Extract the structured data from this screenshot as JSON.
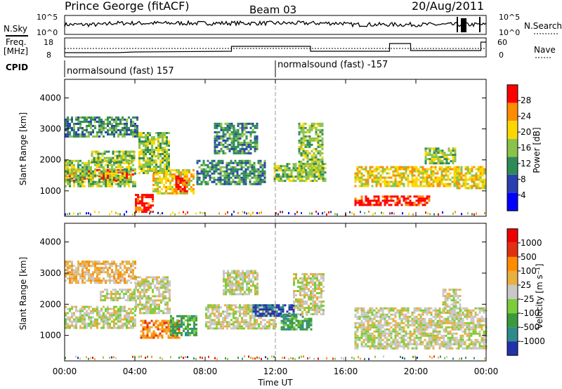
{
  "header": {
    "station": "Prince George (fitACF)",
    "beam": "Beam 03",
    "date": "20/Aug/2011"
  },
  "status_panels": {
    "nsky_label": "N.Sky",
    "nsearch_label": "N.Search",
    "nsky_ticks": [
      "10^5",
      "10^0"
    ],
    "nsearch_ticks": [
      "10^5",
      "10^0"
    ],
    "freq_label_1": "Freq.",
    "freq_label_2": "[MHz]",
    "freq_ticks": [
      "18",
      "8"
    ],
    "nave_label": "Nave",
    "nave_ticks": [
      "60",
      "0"
    ],
    "cpid_label": "CPID",
    "cpid_segments": [
      {
        "label": "normalsound (fast) 157",
        "start_h": 0,
        "end_h": 12
      },
      {
        "label": "normalsound (fast) -157",
        "start_h": 12,
        "end_h": 24
      }
    ]
  },
  "x_axis": {
    "title": "Time UT",
    "ticks": [
      "00:00",
      "04:00",
      "08:00",
      "12:00",
      "16:00",
      "20:00",
      "00:00"
    ],
    "range_hours": [
      0,
      24
    ]
  },
  "chart_data": [
    {
      "type": "heatmap",
      "panel": "power",
      "ylabel": "Slant Range [km]",
      "yticks": [
        1000,
        2000,
        3000,
        4000
      ],
      "ylim": [
        180,
        4600
      ],
      "colorbar_label": "Power [dB]",
      "colorbar_ticks": [
        "28",
        "24",
        "20",
        "16",
        "12",
        "8",
        "4"
      ],
      "colors": [
        "#0000ff",
        "#2a3fb0",
        "#2e8b57",
        "#8bc34a",
        "#ffd700",
        "#ff8c00",
        "#ff0000"
      ],
      "bands": [
        {
          "t0": 0.0,
          "t1": 3.9,
          "r0": 1300,
          "r1": 1700,
          "level": 6
        },
        {
          "t0": 0.0,
          "t1": 4.0,
          "r0": 1150,
          "r1": 2000,
          "level": 3
        },
        {
          "t0": 0.0,
          "t1": 4.1,
          "r0": 2750,
          "r1": 3400,
          "level": 2
        },
        {
          "t0": 1.5,
          "t1": 4.0,
          "r0": 1900,
          "r1": 2300,
          "level": 3
        },
        {
          "t0": 4.0,
          "t1": 5.0,
          "r0": 300,
          "r1": 900,
          "level": 6
        },
        {
          "t0": 4.2,
          "t1": 6.0,
          "r0": 1600,
          "r1": 2900,
          "level": 3
        },
        {
          "t0": 5.0,
          "t1": 7.4,
          "r0": 900,
          "r1": 1700,
          "level": 4
        },
        {
          "t0": 6.3,
          "t1": 7.0,
          "r0": 1000,
          "r1": 1500,
          "level": 6
        },
        {
          "t0": 7.5,
          "t1": 11.4,
          "r0": 1200,
          "r1": 2000,
          "level": 2
        },
        {
          "t0": 8.5,
          "t1": 11.0,
          "r0": 2200,
          "r1": 3200,
          "level": 2
        },
        {
          "t0": 11.9,
          "t1": 14.8,
          "r0": 1300,
          "r1": 1900,
          "level": 3
        },
        {
          "t0": 13.3,
          "t1": 14.7,
          "r0": 1600,
          "r1": 3200,
          "level": 3
        },
        {
          "t0": 16.5,
          "t1": 22.5,
          "r0": 1150,
          "r1": 1800,
          "level": 4
        },
        {
          "t0": 16.5,
          "t1": 20.8,
          "r0": 550,
          "r1": 850,
          "level": 6
        },
        {
          "t0": 20.5,
          "t1": 22.3,
          "r0": 1900,
          "r1": 2400,
          "level": 3
        },
        {
          "t0": 22.3,
          "t1": 23.9,
          "r0": 1100,
          "r1": 1800,
          "level": 4
        }
      ]
    },
    {
      "type": "heatmap",
      "panel": "velocity",
      "ylabel": "Slant Range [km]",
      "yticks": [
        1000,
        2000,
        3000,
        4000
      ],
      "ylim": [
        180,
        4600
      ],
      "colorbar_label": "Velocity [m s⁻¹]",
      "colorbar_ticks": [
        "1000",
        "500",
        "100",
        "25",
        "-25",
        "-100",
        "-500",
        "-1000"
      ],
      "colors": [
        "#2233aa",
        "#2e8b8b",
        "#3c9a3c",
        "#7ccd3a",
        "#c8c8c8",
        "#e8b040",
        "#ff8c00",
        "#e03010",
        "#ee0000"
      ],
      "bands": [
        {
          "t0": 0.0,
          "t1": 4.0,
          "r0": 1250,
          "r1": 1950,
          "level": 4
        },
        {
          "t0": 0.0,
          "t1": 4.0,
          "r0": 2700,
          "r1": 3400,
          "level": 5
        },
        {
          "t0": 2.0,
          "t1": 4.0,
          "r0": 2100,
          "r1": 2500,
          "level": 4
        },
        {
          "t0": 4.0,
          "t1": 6.0,
          "r0": 1700,
          "r1": 2900,
          "level": 4
        },
        {
          "t0": 4.3,
          "t1": 6.5,
          "r0": 900,
          "r1": 1500,
          "level": 6
        },
        {
          "t0": 6.0,
          "t1": 7.5,
          "r0": 1000,
          "r1": 1650,
          "level": 2
        },
        {
          "t0": 8.0,
          "t1": 12.0,
          "r0": 1200,
          "r1": 2000,
          "level": 4
        },
        {
          "t0": 9.0,
          "t1": 11.0,
          "r0": 2300,
          "r1": 3100,
          "level": 4
        },
        {
          "t0": 10.7,
          "t1": 13.0,
          "r0": 1600,
          "r1": 2000,
          "level": 0
        },
        {
          "t0": 12.3,
          "t1": 14.0,
          "r0": 1200,
          "r1": 1700,
          "level": 2
        },
        {
          "t0": 13.0,
          "t1": 14.8,
          "r0": 1700,
          "r1": 3000,
          "level": 4
        },
        {
          "t0": 16.5,
          "t1": 24.0,
          "r0": 600,
          "r1": 1900,
          "level": 4
        },
        {
          "t0": 21.5,
          "t1": 22.5,
          "r0": 1700,
          "r1": 2500,
          "level": 4
        }
      ]
    }
  ]
}
